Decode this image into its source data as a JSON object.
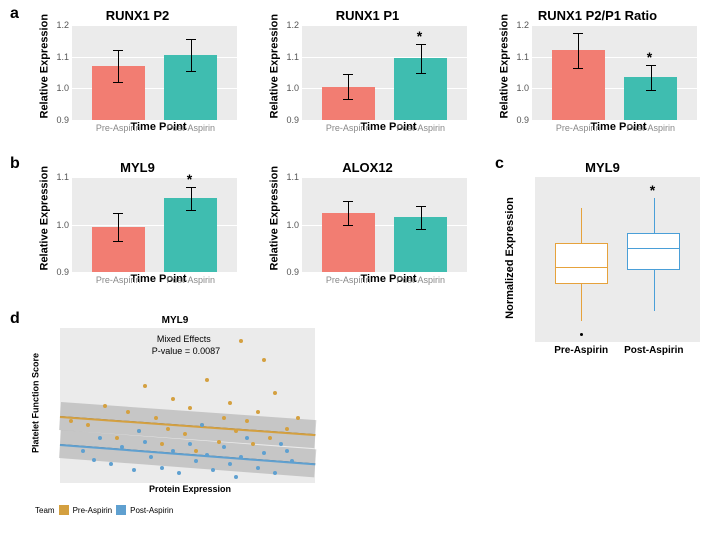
{
  "labels": {
    "a": "a",
    "b": "b",
    "c": "c",
    "d": "d"
  },
  "common": {
    "xlab": "Time Point",
    "ylab_rel": "Relative Expression",
    "ylab_norm": "Normalized Expression",
    "ylab_pfs": "Platelet Function Score",
    "xlab_prot": "Protein Expression",
    "cats": [
      "Pre-Aspirin",
      "Post-Aspirin"
    ],
    "legend_title": "Team",
    "legend_items": [
      "Pre-Aspirin",
      "Post-Aspirin"
    ]
  },
  "colors": {
    "pre": "#f27d72",
    "post": "#3fbdb0",
    "grid_bg": "#ebebeb",
    "gridline": "#ffffff",
    "tick": "#888888",
    "box_pre": "#e6a23c",
    "box_post": "#4a9fd8",
    "scatter_pre": "#d4a040",
    "scatter_post": "#5fa0d0",
    "ribbon": "#808080"
  },
  "barcharts": [
    {
      "id": "runx1p2",
      "title": "RUNX1 P2",
      "ylim": [
        0.9,
        1.2
      ],
      "ytick": 0.1,
      "values": [
        1.07,
        1.105
      ],
      "err": [
        0.05,
        0.05
      ],
      "sig": false
    },
    {
      "id": "runx1p1",
      "title": "RUNX1 P1",
      "ylim": [
        0.9,
        1.2
      ],
      "ytick": 0.1,
      "values": [
        1.005,
        1.095
      ],
      "err": [
        0.04,
        0.045
      ],
      "sig": true
    },
    {
      "id": "runx1ratio",
      "title": "RUNX1 P2/P1 Ratio",
      "ylim": [
        0.9,
        1.2
      ],
      "ytick": 0.1,
      "values": [
        1.12,
        1.035
      ],
      "err": [
        0.055,
        0.04
      ],
      "sig": true
    },
    {
      "id": "myl9",
      "title": "MYL9",
      "ylim": [
        0.9,
        1.1
      ],
      "ytick": 0.1,
      "values": [
        0.995,
        1.055
      ],
      "err": [
        0.03,
        0.025
      ],
      "sig": true
    },
    {
      "id": "alox12",
      "title": "ALOX12",
      "ylim": [
        0.9,
        1.1
      ],
      "ytick": 0.1,
      "values": [
        1.025,
        1.015
      ],
      "err": [
        0.025,
        0.025
      ],
      "sig": false
    }
  ],
  "boxplot": {
    "title": "MYL9",
    "ylim": [
      -4,
      4
    ],
    "pre": {
      "q1": -1.2,
      "med": -0.3,
      "q3": 0.8,
      "lw": -3.0,
      "uw": 2.5,
      "color": "#e6a23c",
      "outliers": [
        -3.6
      ]
    },
    "post": {
      "q1": -0.5,
      "med": 0.6,
      "q3": 1.3,
      "lw": -2.5,
      "uw": 3.0,
      "color": "#4a9fd8",
      "outliers": []
    },
    "sig": true
  },
  "scatter": {
    "title": "MYL9",
    "annot1": "Mixed Effects",
    "annot2": "P-value = 0.0087",
    "xlim": [
      -2.0,
      2.5
    ],
    "ylim": [
      -2,
      10
    ],
    "pre_line": {
      "x0": -2.0,
      "y0": 3.2,
      "x1": 2.5,
      "y1": 1.8
    },
    "post_line": {
      "x0": -2.0,
      "y0": 1.0,
      "x1": 2.5,
      "y1": -0.5
    },
    "pre_pts": [
      [
        -1.5,
        2.5
      ],
      [
        -1.2,
        4.0
      ],
      [
        -1.0,
        1.5
      ],
      [
        -0.8,
        3.5
      ],
      [
        -0.6,
        2.0
      ],
      [
        -0.5,
        5.5
      ],
      [
        -0.3,
        3.0
      ],
      [
        -0.1,
        2.2
      ],
      [
        0.0,
        4.5
      ],
      [
        0.2,
        1.8
      ],
      [
        0.3,
        3.8
      ],
      [
        0.5,
        2.5
      ],
      [
        0.6,
        6.0
      ],
      [
        0.8,
        1.2
      ],
      [
        0.9,
        3.0
      ],
      [
        1.0,
        4.2
      ],
      [
        1.1,
        2.0
      ],
      [
        1.2,
        9.0
      ],
      [
        1.3,
        2.8
      ],
      [
        1.5,
        3.5
      ],
      [
        1.7,
        1.5
      ],
      [
        1.8,
        5.0
      ],
      [
        2.0,
        2.2
      ],
      [
        2.2,
        3.0
      ],
      [
        -1.8,
        2.8
      ],
      [
        -0.2,
        1.0
      ],
      [
        0.4,
        0.5
      ],
      [
        1.4,
        1.0
      ],
      [
        1.6,
        7.5
      ]
    ],
    "post_pts": [
      [
        -1.6,
        0.5
      ],
      [
        -1.3,
        1.5
      ],
      [
        -1.1,
        -0.5
      ],
      [
        -0.9,
        0.8
      ],
      [
        -0.7,
        -1.0
      ],
      [
        -0.5,
        1.2
      ],
      [
        -0.4,
        0.0
      ],
      [
        -0.2,
        -0.8
      ],
      [
        0.0,
        0.5
      ],
      [
        0.1,
        -1.2
      ],
      [
        0.3,
        1.0
      ],
      [
        0.4,
        -0.3
      ],
      [
        0.6,
        0.2
      ],
      [
        0.7,
        -1.0
      ],
      [
        0.9,
        0.8
      ],
      [
        1.0,
        -0.5
      ],
      [
        1.2,
        0.0
      ],
      [
        1.3,
        1.5
      ],
      [
        1.5,
        -0.8
      ],
      [
        1.6,
        0.3
      ],
      [
        1.8,
        -1.2
      ],
      [
        2.0,
        0.5
      ],
      [
        2.1,
        -0.3
      ],
      [
        -1.4,
        -0.2
      ],
      [
        -0.6,
        2.0
      ],
      [
        0.5,
        2.5
      ],
      [
        1.1,
        -1.5
      ],
      [
        1.9,
        1.0
      ]
    ]
  }
}
